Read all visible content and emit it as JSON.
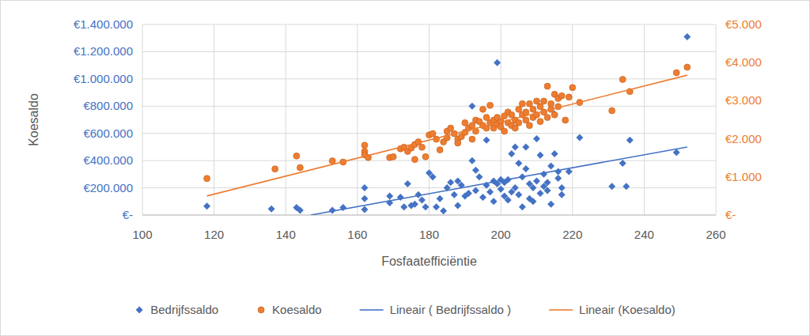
{
  "chart_data": {
    "type": "scatter",
    "x_label": "Fosfaatefficiëntie",
    "y_label": "Koesaldo",
    "xlim": [
      100,
      260
    ],
    "xticks": [
      100,
      120,
      140,
      160,
      180,
      200,
      220,
      240,
      260
    ],
    "ylim": [
      0,
      1400000
    ],
    "yticks": [
      {
        "value": 0,
        "label": "€-"
      },
      {
        "value": 200000,
        "label": "€200.000"
      },
      {
        "value": 400000,
        "label": "€400.000"
      },
      {
        "value": 600000,
        "label": "€600.000"
      },
      {
        "value": 800000,
        "label": "€800.000"
      },
      {
        "value": 1000000,
        "label": "€1.000.000"
      },
      {
        "value": 1200000,
        "label": "€1.200.000"
      },
      {
        "value": 1400000,
        "label": "€1.400.000"
      }
    ],
    "y2lim": [
      0,
      5000
    ],
    "y2ticks": [
      {
        "value": 0,
        "label": "€-"
      },
      {
        "value": 1000,
        "label": "€1.000"
      },
      {
        "value": 2000,
        "label": "€2.000"
      },
      {
        "value": 3000,
        "label": "€3.000"
      },
      {
        "value": 4000,
        "label": "€4.000"
      },
      {
        "value": 5000,
        "label": "€5.000"
      }
    ],
    "grid": true,
    "legend": "bottom",
    "series": [
      {
        "name": "Bedrijfssaldo",
        "type": "scatter",
        "marker": "diamond",
        "color": "#4472c4",
        "x": [
          118,
          136,
          143,
          144,
          153,
          156,
          162,
          162,
          162,
          169,
          169,
          172,
          173,
          174,
          175,
          176,
          177,
          178,
          179,
          180,
          181,
          182,
          183,
          184,
          185,
          186,
          187,
          188,
          188,
          189,
          190,
          191,
          192,
          192,
          193,
          193,
          194,
          195,
          196,
          196,
          197,
          198,
          198,
          199,
          199,
          200,
          200,
          201,
          201,
          202,
          202,
          203,
          203,
          204,
          204,
          205,
          205,
          206,
          206,
          207,
          207,
          208,
          208,
          209,
          209,
          210,
          210,
          211,
          211,
          212,
          212,
          213,
          213,
          214,
          214,
          215,
          215,
          216,
          216,
          217,
          217,
          219,
          222,
          231,
          234,
          235,
          236,
          249,
          252
        ],
        "values": [
          65000,
          45000,
          55000,
          35000,
          35000,
          55000,
          200000,
          120000,
          40000,
          140000,
          90000,
          130000,
          60000,
          230000,
          70000,
          80000,
          150000,
          110000,
          60000,
          310000,
          280000,
          60000,
          120000,
          30000,
          200000,
          240000,
          150000,
          70000,
          250000,
          220000,
          140000,
          160000,
          800000,
          400000,
          180000,
          330000,
          280000,
          130000,
          220000,
          550000,
          170000,
          250000,
          100000,
          1120000,
          230000,
          260000,
          190000,
          140000,
          240000,
          110000,
          260000,
          170000,
          450000,
          500000,
          200000,
          380000,
          150000,
          280000,
          60000,
          340000,
          500000,
          230000,
          120000,
          200000,
          100000,
          560000,
          250000,
          440000,
          160000,
          300000,
          210000,
          180000,
          240000,
          360000,
          80000,
          740000,
          450000,
          320000,
          270000,
          200000,
          150000,
          320000,
          570000,
          210000,
          380000,
          210000,
          550000,
          460000,
          1310000
        ]
      },
      {
        "name": "Koesaldo",
        "type": "scatter",
        "marker": "circle",
        "color": "#ed7d31",
        "axis": "y2",
        "x": [
          118,
          137,
          143,
          144,
          153,
          156,
          162,
          162,
          162,
          163,
          169,
          170,
          172,
          173,
          174,
          175,
          176,
          176,
          177,
          178,
          179,
          180,
          181,
          182,
          183,
          184,
          185,
          185,
          186,
          187,
          188,
          188,
          189,
          190,
          190,
          191,
          192,
          192,
          193,
          193,
          194,
          195,
          195,
          196,
          196,
          197,
          197,
          198,
          198,
          199,
          199,
          200,
          200,
          201,
          201,
          202,
          202,
          203,
          203,
          204,
          204,
          205,
          205,
          206,
          206,
          207,
          207,
          208,
          208,
          209,
          209,
          210,
          210,
          211,
          211,
          212,
          212,
          213,
          213,
          214,
          214,
          215,
          215,
          216,
          216,
          217,
          218,
          219,
          220,
          222,
          231,
          234,
          236,
          249,
          252
        ],
        "values": [
          960,
          1210,
          1550,
          1245,
          1420,
          1390,
          1830,
          1670,
          1580,
          1510,
          1510,
          1530,
          1740,
          1780,
          1670,
          1760,
          1460,
          1850,
          1920,
          1780,
          1530,
          2100,
          2135,
          1990,
          1710,
          1920,
          2200,
          2030,
          2280,
          2135,
          1990,
          1890,
          2060,
          2420,
          2170,
          2280,
          1990,
          2350,
          2490,
          2200,
          2455,
          2350,
          2775,
          2560,
          2280,
          2880,
          2420,
          2490,
          2280,
          2560,
          2385,
          2455,
          2315,
          2600,
          2200,
          2420,
          2700,
          2350,
          2630,
          2490,
          2280,
          2775,
          2420,
          2630,
          2920,
          2700,
          2490,
          2920,
          2350,
          2775,
          2560,
          2990,
          2630,
          2845,
          2455,
          2990,
          2700,
          3380,
          2560,
          2920,
          2775,
          3170,
          2630,
          3060,
          2845,
          3130,
          2490,
          3095,
          3345,
          2955,
          2740,
          3560,
          3240,
          3735,
          3880
        ]
      },
      {
        "name": "Lineair ( Bedrijfssaldo )",
        "type": "line",
        "line_style": "solid",
        "color": "#4472c4",
        "x": [
          147,
          252
        ],
        "values": [
          0,
          500000
        ]
      },
      {
        "name": "Lineair (Koesaldo)",
        "type": "line",
        "line_style": "solid",
        "color": "#ed7d31",
        "axis": "y2",
        "x": [
          118,
          252
        ],
        "values": [
          500,
          3670
        ]
      }
    ]
  }
}
